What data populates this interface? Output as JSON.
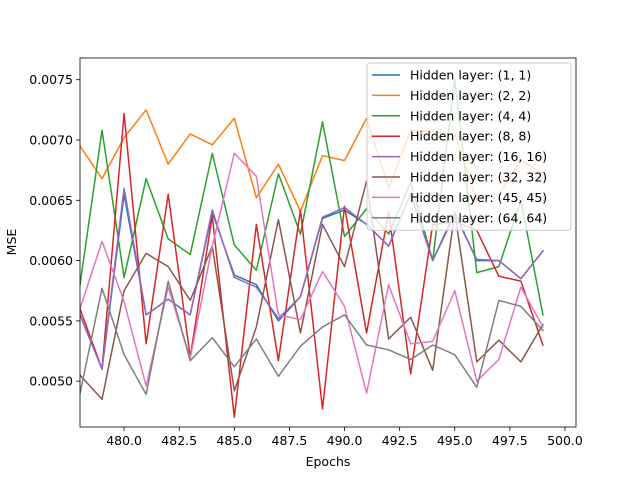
{
  "chart_data": {
    "type": "line",
    "title": "",
    "xlabel": "Epochs",
    "ylabel": "MSE",
    "xlim": [
      478,
      500.5
    ],
    "ylim": [
      0.00462,
      0.00768
    ],
    "x_ticks": [
      480.0,
      482.5,
      485.0,
      487.5,
      490.0,
      492.5,
      495.0,
      497.5,
      500.0
    ],
    "x_tick_labels": [
      "480.0",
      "482.5",
      "485.0",
      "487.5",
      "490.0",
      "492.5",
      "495.0",
      "497.5",
      "500.0"
    ],
    "y_ticks": [
      0.005,
      0.0055,
      0.006,
      0.0065,
      0.007,
      0.0075
    ],
    "y_tick_labels": [
      "0.0050",
      "0.0055",
      "0.0060",
      "0.0065",
      "0.0070",
      "0.0075"
    ],
    "grid": false,
    "legend_position": "top-right",
    "x": [
      478,
      479,
      480,
      481,
      482,
      483,
      484,
      485,
      486,
      487,
      488,
      489,
      490,
      491,
      492,
      493,
      494,
      495,
      496,
      497,
      498,
      499
    ],
    "series": [
      {
        "name": "Hidden layer: (1, 1)",
        "color": "#1f77b4",
        "values": [
          0.00555,
          0.0051,
          0.00655,
          0.00555,
          0.00568,
          0.00555,
          0.0064,
          0.00588,
          0.0058,
          0.0055,
          0.0057,
          0.00635,
          0.00642,
          0.0063,
          0.00612,
          0.00655,
          0.006,
          0.0064,
          0.006,
          0.006,
          0.00585,
          0.00608
        ]
      },
      {
        "name": "Hidden layer: (2, 2)",
        "color": "#ff7f0e",
        "values": [
          0.00695,
          0.00668,
          0.00702,
          0.00725,
          0.0068,
          0.00705,
          0.00696,
          0.00718,
          0.00652,
          0.0068,
          0.00641,
          0.00687,
          0.00683,
          0.00718,
          0.0066,
          0.00708,
          0.00707,
          0.00705,
          0.0065,
          0.00655,
          0.00683,
          0.00672
        ]
      },
      {
        "name": "Hidden layer: (4, 4)",
        "color": "#2ca02c",
        "values": [
          0.0058,
          0.00708,
          0.00586,
          0.00668,
          0.00618,
          0.00605,
          0.00689,
          0.00613,
          0.00592,
          0.00672,
          0.00622,
          0.00715,
          0.0062,
          0.00643,
          0.00622,
          0.00665,
          0.006,
          0.0075,
          0.0059,
          0.00595,
          0.0065,
          0.00555
        ]
      },
      {
        "name": "Hidden layer: (8, 8)",
        "color": "#d62728",
        "values": [
          0.0056,
          0.0051,
          0.00722,
          0.00531,
          0.00655,
          0.0052,
          0.00637,
          0.0047,
          0.0063,
          0.00517,
          0.00642,
          0.00477,
          0.00645,
          0.0054,
          0.0064,
          0.00506,
          0.0063,
          0.00632,
          0.00625,
          0.00587,
          0.00583,
          0.0053
        ]
      },
      {
        "name": "Hidden layer: (16, 16)",
        "color": "#9467bd",
        "values": [
          0.00555,
          0.0051,
          0.0066,
          0.00555,
          0.00568,
          0.00555,
          0.00642,
          0.00586,
          0.00578,
          0.00552,
          0.0057,
          0.00636,
          0.00644,
          0.0063,
          0.00612,
          0.00655,
          0.006,
          0.00638,
          0.00601,
          0.006,
          0.00585,
          0.00608
        ]
      },
      {
        "name": "Hidden layer: (32, 32)",
        "color": "#8c564b",
        "values": [
          0.00505,
          0.00485,
          0.00575,
          0.00606,
          0.00595,
          0.00567,
          0.00612,
          0.00492,
          0.00545,
          0.00634,
          0.0054,
          0.0063,
          0.00595,
          0.00666,
          0.00535,
          0.00553,
          0.00509,
          0.0064,
          0.00516,
          0.00534,
          0.00516,
          0.00547
        ]
      },
      {
        "name": "Hidden layer: (45, 45)",
        "color": "#e377c2",
        "values": [
          0.0056,
          0.00616,
          0.00566,
          0.00496,
          0.00578,
          0.00519,
          0.00612,
          0.00689,
          0.0067,
          0.00555,
          0.00551,
          0.00591,
          0.00562,
          0.0049,
          0.0058,
          0.00531,
          0.00533,
          0.00575,
          0.005,
          0.00518,
          0.00578,
          0.00545
        ]
      },
      {
        "name": "Hidden layer: (64, 64)",
        "color": "#7f7f7f",
        "values": [
          0.0049,
          0.00577,
          0.00522,
          0.00489,
          0.00583,
          0.00517,
          0.00536,
          0.00512,
          0.00535,
          0.00504,
          0.00529,
          0.00545,
          0.00555,
          0.0053,
          0.00526,
          0.00518,
          0.0053,
          0.00522,
          0.00495,
          0.00567,
          0.00562,
          0.00542
        ]
      }
    ]
  }
}
